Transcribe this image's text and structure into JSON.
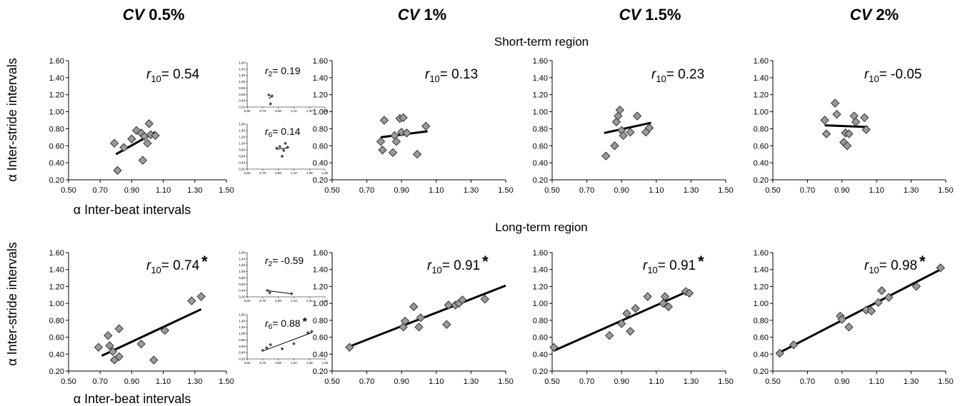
{
  "figure": {
    "columns": [
      {
        "prefix": "CV",
        "value": " 0.5%"
      },
      {
        "prefix": "CV",
        "value": " 1%"
      },
      {
        "prefix": "CV",
        "value": " 1.5%"
      },
      {
        "prefix": "CV",
        "value": " 2%"
      }
    ],
    "rows": [
      {
        "region_title": "Short-term region"
      },
      {
        "region_title": "Long-term region"
      }
    ],
    "ylabel": "α Inter-stride intervals",
    "xlabel": "α Inter-beat intervals"
  },
  "chart_data": [
    {
      "type": "scatter",
      "row": 0,
      "col": 0,
      "xlim": [
        0.5,
        1.5
      ],
      "ylim": [
        0.2,
        1.6
      ],
      "xticks": [
        "0.50",
        "0.70",
        "0.90",
        "1.10",
        "1.30",
        "1.50"
      ],
      "yticks": [
        "0.20",
        "0.40",
        "0.60",
        "0.80",
        "1.00",
        "1.20",
        "1.40",
        "1.60"
      ],
      "annotation": {
        "r": "r",
        "sub": "10",
        "text": "= 0.54",
        "star": ""
      },
      "x": [
        0.79,
        0.81,
        0.85,
        0.9,
        0.93,
        0.96,
        0.97,
        0.98,
        1.0,
        1.01,
        1.02,
        1.05
      ],
      "y": [
        0.63,
        0.31,
        0.58,
        0.68,
        0.78,
        0.75,
        0.43,
        0.71,
        0.63,
        0.86,
        0.73,
        0.72
      ],
      "fit": [
        [
          0.8,
          0.5
        ],
        [
          1.05,
          0.76
        ]
      ]
    },
    {
      "type": "scatter",
      "row": 0,
      "col": 0,
      "inset": true,
      "xlim": [
        0.5,
        1.5
      ],
      "ylim": [
        0.2,
        1.6
      ],
      "xticks": [
        "0,50",
        "0,70",
        "0,90",
        "1,10",
        "1,30",
        "1,50"
      ],
      "yticks": [
        "0,20",
        "0,40",
        "0,60",
        "0,80",
        "1,00",
        "1,20",
        "1,40",
        "1,60"
      ],
      "annotation": {
        "r": "r",
        "sub": "2",
        "text": "= 0.19",
        "star": ""
      },
      "x": [
        0.78,
        0.8,
        0.82
      ],
      "y": [
        0.58,
        0.3,
        0.55
      ],
      "fit": [
        [
          0.78,
          0.47
        ],
        [
          0.83,
          0.56
        ]
      ]
    },
    {
      "type": "scatter",
      "row": 0,
      "col": 0,
      "inset": true,
      "xlim": [
        0.5,
        1.5
      ],
      "ylim": [
        0.2,
        1.6
      ],
      "xticks": [
        "0,50",
        "0,70",
        "0,90",
        "1,10",
        "1,30",
        "1,50"
      ],
      "yticks": [
        "0,20",
        "0,40",
        "0,60",
        "0,80",
        "1,00",
        "1,20",
        "1,40",
        "1,60"
      ],
      "annotation": {
        "r": "r",
        "sub": "6",
        "text": "= 0.14",
        "star": ""
      },
      "x": [
        0.88,
        0.92,
        0.95,
        0.97,
        0.99,
        1.02
      ],
      "y": [
        0.85,
        0.9,
        0.6,
        0.78,
        1.0,
        0.88
      ],
      "fit": [
        [
          0.88,
          0.82
        ],
        [
          1.02,
          0.86
        ]
      ]
    },
    {
      "type": "scatter",
      "row": 0,
      "col": 1,
      "xlim": [
        0.5,
        1.5
      ],
      "ylim": [
        0.2,
        1.6
      ],
      "xticks": [
        "0.50",
        "0.70",
        "0.90",
        "1.10",
        "1.30",
        "1.50"
      ],
      "yticks": [
        "0.20",
        "0.40",
        "0.60",
        "0.80",
        "1.00",
        "1.20",
        "1.40",
        "1.60"
      ],
      "annotation": {
        "r": "r",
        "sub": "10",
        "text": "= 0.13",
        "star": ""
      },
      "x": [
        0.78,
        0.79,
        0.8,
        0.85,
        0.86,
        0.87,
        0.89,
        0.9,
        0.91,
        0.93,
        0.99,
        1.04
      ],
      "y": [
        0.65,
        0.55,
        0.9,
        0.52,
        0.72,
        0.65,
        0.92,
        0.76,
        0.93,
        0.75,
        0.5,
        0.83
      ],
      "fit": [
        [
          0.78,
          0.7
        ],
        [
          1.05,
          0.77
        ]
      ]
    },
    {
      "type": "scatter",
      "row": 0,
      "col": 2,
      "xlim": [
        0.5,
        1.5
      ],
      "ylim": [
        0.2,
        1.6
      ],
      "xticks": [
        "0.50",
        "0.70",
        "0.90",
        "1.10",
        "1.30",
        "1.50"
      ],
      "yticks": [
        "0.20",
        "0.40",
        "0.60",
        "0.80",
        "1.00",
        "1.20",
        "1.40",
        "1.60"
      ],
      "annotation": {
        "r": "r",
        "sub": "10",
        "text": "= 0.23",
        "star": ""
      },
      "x": [
        0.81,
        0.86,
        0.87,
        0.88,
        0.89,
        0.9,
        0.91,
        0.95,
        0.99,
        1.04,
        1.06
      ],
      "y": [
        0.48,
        0.6,
        0.88,
        0.95,
        1.02,
        0.78,
        0.72,
        0.76,
        0.95,
        0.76,
        0.81
      ],
      "fit": [
        [
          0.8,
          0.75
        ],
        [
          1.07,
          0.87
        ]
      ]
    },
    {
      "type": "scatter",
      "row": 0,
      "col": 3,
      "xlim": [
        0.5,
        1.5
      ],
      "ylim": [
        0.2,
        1.6
      ],
      "xticks": [
        "0.50",
        "0.70",
        "0.90",
        "1.10",
        "1.30",
        "1.50"
      ],
      "yticks": [
        "0.20",
        "0.40",
        "0.60",
        "0.80",
        "1.00",
        "1.20",
        "1.40",
        "1.60"
      ],
      "annotation": {
        "r": "r",
        "sub": "10",
        "text": "= -0.05",
        "star": ""
      },
      "x": [
        0.8,
        0.81,
        0.86,
        0.87,
        0.91,
        0.92,
        0.93,
        0.94,
        0.97,
        0.98,
        1.03,
        1.04
      ],
      "y": [
        0.9,
        0.74,
        1.1,
        0.97,
        0.64,
        0.75,
        0.6,
        0.74,
        0.95,
        0.88,
        0.93,
        0.79
      ],
      "fit": [
        [
          0.8,
          0.84
        ],
        [
          1.05,
          0.82
        ]
      ]
    },
    {
      "type": "scatter",
      "row": 1,
      "col": 0,
      "xlim": [
        0.5,
        1.5
      ],
      "ylim": [
        0.2,
        1.6
      ],
      "xticks": [
        "0.50",
        "0.70",
        "0.90",
        "1.10",
        "1.30",
        "1.50"
      ],
      "yticks": [
        "0.20",
        "0.40",
        "0.60",
        "0.80",
        "1.00",
        "1.20",
        "1.40",
        "1.60"
      ],
      "annotation": {
        "r": "r",
        "sub": "10",
        "text": "= 0.74",
        "star": "*"
      },
      "x": [
        0.69,
        0.75,
        0.76,
        0.78,
        0.79,
        0.82,
        0.82,
        0.96,
        1.04,
        1.11,
        1.28,
        1.34
      ],
      "y": [
        0.48,
        0.62,
        0.5,
        0.43,
        0.33,
        0.37,
        0.7,
        0.52,
        0.33,
        0.68,
        1.03,
        1.08
      ],
      "fit": [
        [
          0.71,
          0.38
        ],
        [
          1.34,
          0.93
        ]
      ]
    },
    {
      "type": "scatter",
      "row": 1,
      "col": 0,
      "inset": true,
      "xlim": [
        0.5,
        1.5
      ],
      "ylim": [
        0.2,
        1.6
      ],
      "xticks": [
        "0,50",
        "0,70",
        "0,90",
        "1,10",
        "1,30",
        "1,50"
      ],
      "yticks": [
        "0,20",
        "0,40",
        "0,60",
        "0,80",
        "1,00",
        "1,20",
        "1,40",
        "1,60"
      ],
      "annotation": {
        "r": "r",
        "sub": "2",
        "text": "= -0.59",
        "star": ""
      },
      "x": [
        0.76,
        0.79,
        1.07
      ],
      "y": [
        0.4,
        0.33,
        0.3
      ],
      "fit": [
        [
          0.75,
          0.4
        ],
        [
          1.07,
          0.3
        ]
      ]
    },
    {
      "type": "scatter",
      "row": 1,
      "col": 0,
      "inset": true,
      "xlim": [
        0.5,
        1.5
      ],
      "ylim": [
        0.2,
        1.6
      ],
      "xticks": [
        "0,50",
        "0,70",
        "0,90",
        "1,10",
        "1,30",
        "1,50"
      ],
      "yticks": [
        "0,20",
        "0,40",
        "0,60",
        "0,80",
        "1,00",
        "1,20",
        "1,40",
        "1,60"
      ],
      "annotation": {
        "r": "r",
        "sub": "6",
        "text": "= 0.88",
        "star": "*"
      },
      "x": [
        0.7,
        0.75,
        0.8,
        0.95,
        1.1,
        1.28,
        1.33
      ],
      "y": [
        0.47,
        0.55,
        0.65,
        0.52,
        0.68,
        1.03,
        1.07
      ],
      "fit": [
        [
          0.7,
          0.45
        ],
        [
          1.33,
          1.03
        ]
      ]
    },
    {
      "type": "scatter",
      "row": 1,
      "col": 1,
      "xlim": [
        0.5,
        1.5
      ],
      "ylim": [
        0.2,
        1.6
      ],
      "xticks": [
        "0.50",
        "0.70",
        "0.90",
        "1.10",
        "1.30",
        "1.50"
      ],
      "yticks": [
        "0.20",
        "0.40",
        "0.60",
        "0.80",
        "1.00",
        "1.20",
        "1.40",
        "1.60"
      ],
      "annotation": {
        "r": "r",
        "sub": "10",
        "text": "= 0.91",
        "star": "*"
      },
      "x": [
        0.6,
        0.91,
        0.92,
        0.97,
        1.0,
        1.01,
        1.16,
        1.17,
        1.21,
        1.23,
        1.25,
        1.38
      ],
      "y": [
        0.48,
        0.72,
        0.79,
        0.96,
        0.72,
        0.83,
        0.75,
        0.98,
        0.98,
        1.0,
        1.04,
        1.05
      ],
      "fit": [
        [
          0.6,
          0.49
        ],
        [
          1.5,
          1.21
        ]
      ]
    },
    {
      "type": "scatter",
      "row": 1,
      "col": 2,
      "xlim": [
        0.5,
        1.5
      ],
      "ylim": [
        0.2,
        1.6
      ],
      "xticks": [
        "0.50",
        "0.70",
        "0.90",
        "1.10",
        "1.30",
        "1.50"
      ],
      "yticks": [
        "0.20",
        "0.40",
        "0.60",
        "0.80",
        "1.00",
        "1.20",
        "1.40",
        "1.60"
      ],
      "annotation": {
        "r": "r",
        "sub": "10",
        "text": "= 0.91",
        "star": "*"
      },
      "x": [
        0.51,
        0.83,
        0.9,
        0.93,
        0.95,
        0.98,
        1.05,
        1.14,
        1.15,
        1.17,
        1.27,
        1.29
      ],
      "y": [
        0.48,
        0.62,
        0.76,
        0.88,
        0.67,
        0.94,
        1.08,
        1.0,
        1.08,
        0.96,
        1.14,
        1.12
      ],
      "fit": [
        [
          0.51,
          0.44
        ],
        [
          1.29,
          1.15
        ]
      ]
    },
    {
      "type": "scatter",
      "row": 1,
      "col": 3,
      "xlim": [
        0.5,
        1.5
      ],
      "ylim": [
        0.2,
        1.6
      ],
      "xticks": [
        "0.50",
        "0.70",
        "0.90",
        "1.10",
        "1.30",
        "1.50"
      ],
      "yticks": [
        "0.20",
        "0.40",
        "0.60",
        "0.80",
        "1.00",
        "1.20",
        "1.40",
        "1.60"
      ],
      "annotation": {
        "r": "r",
        "sub": "10",
        "text": "= 0.98",
        "star": "*"
      },
      "x": [
        0.54,
        0.62,
        0.89,
        0.9,
        0.94,
        1.04,
        1.07,
        1.11,
        1.13,
        1.17,
        1.33,
        1.47
      ],
      "y": [
        0.41,
        0.51,
        0.85,
        0.81,
        0.72,
        0.92,
        0.91,
        1.01,
        1.15,
        1.07,
        1.2,
        1.42
      ],
      "fit": [
        [
          0.54,
          0.42
        ],
        [
          1.47,
          1.4
        ]
      ]
    }
  ]
}
